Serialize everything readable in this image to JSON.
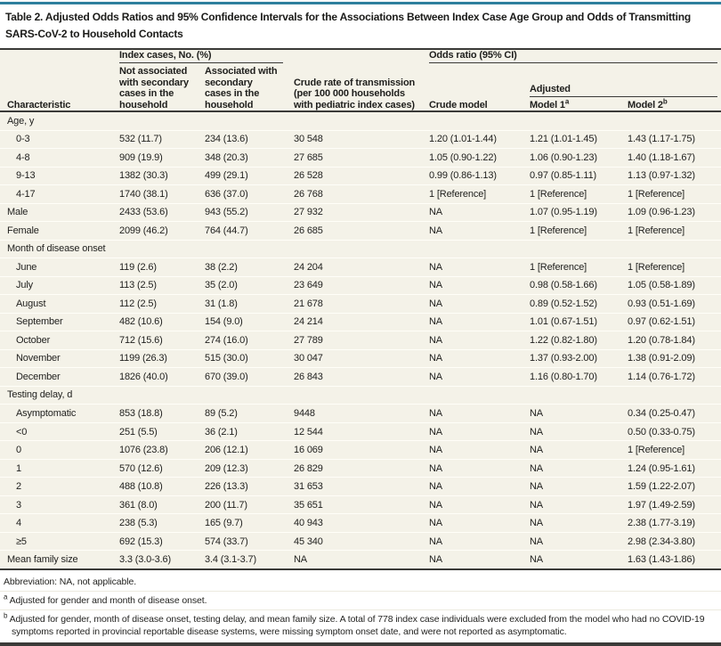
{
  "colors": {
    "accent_teal": "#2e7f9e",
    "table_background": "#f4f2e8",
    "rule_dark": "#3a3a38"
  },
  "title_lines": [
    "Table 2. Adjusted Odds Ratios and 95% Confidence Intervals for the Associations Between Index Case Age Group and Odds of Transmitting",
    "SARS-CoV-2 to Household Contacts"
  ],
  "header": {
    "characteristic": "Characteristic",
    "index_cases_group": "Index cases, No. (%)",
    "odds_ratio_group": "Odds ratio (95% CI)",
    "adjusted_group": "Adjusted",
    "col_not_associated": "Not associated with secondary cases in the household",
    "col_associated": "Associated with secondary cases in the household",
    "col_crude_rate": "Crude rate of transmission (per 100 000 households with pediatric index cases)",
    "col_crude_model": "Crude model",
    "col_model1_label": "Model 1",
    "col_model1_sup": "a",
    "col_model2_label": "Model 2",
    "col_model2_sup": "b"
  },
  "table": {
    "rows": [
      {
        "label": "Age, y",
        "section": true,
        "indent": false,
        "cells": [
          "",
          "",
          "",
          "",
          "",
          ""
        ]
      },
      {
        "label": "0-3",
        "section": false,
        "indent": true,
        "cells": [
          "532 (11.7)",
          "234 (13.6)",
          "30 548",
          "1.20 (1.01-1.44)",
          "1.21 (1.01-1.45)",
          "1.43 (1.17-1.75)"
        ]
      },
      {
        "label": "4-8",
        "section": false,
        "indent": true,
        "cells": [
          "909 (19.9)",
          "348 (20.3)",
          "27 685",
          "1.05 (0.90-1.22)",
          "1.06 (0.90-1.23)",
          "1.40 (1.18-1.67)"
        ]
      },
      {
        "label": "9-13",
        "section": false,
        "indent": true,
        "cells": [
          "1382 (30.3)",
          "499 (29.1)",
          "26 528",
          "0.99 (0.86-1.13)",
          "0.97 (0.85-1.11)",
          "1.13 (0.97-1.32)"
        ]
      },
      {
        "label": "4-17",
        "section": false,
        "indent": true,
        "cells": [
          "1740 (38.1)",
          "636 (37.0)",
          "26 768",
          "1 [Reference]",
          "1 [Reference]",
          "1 [Reference]"
        ]
      },
      {
        "label": "Male",
        "section": false,
        "indent": false,
        "cells": [
          "2433 (53.6)",
          "943 (55.2)",
          "27 932",
          "NA",
          "1.07 (0.95-1.19)",
          "1.09 (0.96-1.23)"
        ]
      },
      {
        "label": "Female",
        "section": false,
        "indent": false,
        "cells": [
          "2099 (46.2)",
          "764 (44.7)",
          "26 685",
          "NA",
          "1 [Reference]",
          "1 [Reference]"
        ]
      },
      {
        "label": "Month of disease onset",
        "section": true,
        "indent": false,
        "cells": [
          "",
          "",
          "",
          "",
          "",
          ""
        ]
      },
      {
        "label": "June",
        "section": false,
        "indent": true,
        "cells": [
          "119 (2.6)",
          "38 (2.2)",
          "24 204",
          "NA",
          "1 [Reference]",
          "1 [Reference]"
        ]
      },
      {
        "label": "July",
        "section": false,
        "indent": true,
        "cells": [
          "113 (2.5)",
          "35 (2.0)",
          "23 649",
          "NA",
          "0.98 (0.58-1.66)",
          "1.05 (0.58-1.89)"
        ]
      },
      {
        "label": "August",
        "section": false,
        "indent": true,
        "cells": [
          "112 (2.5)",
          "31 (1.8)",
          "21 678",
          "NA",
          "0.89 (0.52-1.52)",
          "0.93 (0.51-1.69)"
        ]
      },
      {
        "label": "September",
        "section": false,
        "indent": true,
        "cells": [
          "482 (10.6)",
          "154 (9.0)",
          "24 214",
          "NA",
          "1.01 (0.67-1.51)",
          "0.97 (0.62-1.51)"
        ]
      },
      {
        "label": "October",
        "section": false,
        "indent": true,
        "cells": [
          "712 (15.6)",
          "274 (16.0)",
          "27 789",
          "NA",
          "1.22 (0.82-1.80)",
          "1.20 (0.78-1.84)"
        ]
      },
      {
        "label": "November",
        "section": false,
        "indent": true,
        "cells": [
          "1199 (26.3)",
          "515 (30.0)",
          "30 047",
          "NA",
          "1.37 (0.93-2.00)",
          "1.38 (0.91-2.09)"
        ]
      },
      {
        "label": "December",
        "section": false,
        "indent": true,
        "cells": [
          "1826 (40.0)",
          "670 (39.0)",
          "26 843",
          "NA",
          "1.16 (0.80-1.70)",
          "1.14 (0.76-1.72)"
        ]
      },
      {
        "label": "Testing delay, d",
        "section": true,
        "indent": false,
        "cells": [
          "",
          "",
          "",
          "",
          "",
          ""
        ]
      },
      {
        "label": "Asymptomatic",
        "section": false,
        "indent": true,
        "cells": [
          "853 (18.8)",
          "89 (5.2)",
          "9448",
          "NA",
          "NA",
          "0.34 (0.25-0.47)"
        ]
      },
      {
        "label": "<0",
        "section": false,
        "indent": true,
        "cells": [
          "251 (5.5)",
          "36 (2.1)",
          "12 544",
          "NA",
          "NA",
          "0.50 (0.33-0.75)"
        ]
      },
      {
        "label": "0",
        "section": false,
        "indent": true,
        "cells": [
          "1076 (23.8)",
          "206 (12.1)",
          "16 069",
          "NA",
          "NA",
          "1 [Reference]"
        ]
      },
      {
        "label": "1",
        "section": false,
        "indent": true,
        "cells": [
          "570 (12.6)",
          "209 (12.3)",
          "26 829",
          "NA",
          "NA",
          "1.24 (0.95-1.61)"
        ]
      },
      {
        "label": "2",
        "section": false,
        "indent": true,
        "cells": [
          "488 (10.8)",
          "226 (13.3)",
          "31 653",
          "NA",
          "NA",
          "1.59 (1.22-2.07)"
        ]
      },
      {
        "label": "3",
        "section": false,
        "indent": true,
        "cells": [
          "361 (8.0)",
          "200 (11.7)",
          "35 651",
          "NA",
          "NA",
          "1.97 (1.49-2.59)"
        ]
      },
      {
        "label": "4",
        "section": false,
        "indent": true,
        "cells": [
          "238 (5.3)",
          "165 (9.7)",
          "40 943",
          "NA",
          "NA",
          "2.38 (1.77-3.19)"
        ]
      },
      {
        "label": "≥5",
        "section": false,
        "indent": true,
        "cells": [
          "692 (15.3)",
          "574 (33.7)",
          "45 340",
          "NA",
          "NA",
          "2.98 (2.34-3.80)"
        ]
      },
      {
        "label": "Mean family size",
        "section": false,
        "indent": false,
        "cells": [
          "3.3 (3.0-3.6)",
          "3.4 (3.1-3.7)",
          "NA",
          "NA",
          "NA",
          "1.63 (1.43-1.86)"
        ]
      }
    ]
  },
  "footnotes": {
    "abbreviation": "Abbreviation: NA, not applicable.",
    "a_sup": "a",
    "a_text": "Adjusted for gender and month of disease onset.",
    "b_sup": "b",
    "b_text": "Adjusted for gender, month of disease onset, testing delay, and mean family size. A total of 778 index case individuals were excluded from the model who had no COVID-19 symptoms reported in provincial reportable disease systems, were missing symptom onset date, and were not reported as asymptomatic."
  }
}
